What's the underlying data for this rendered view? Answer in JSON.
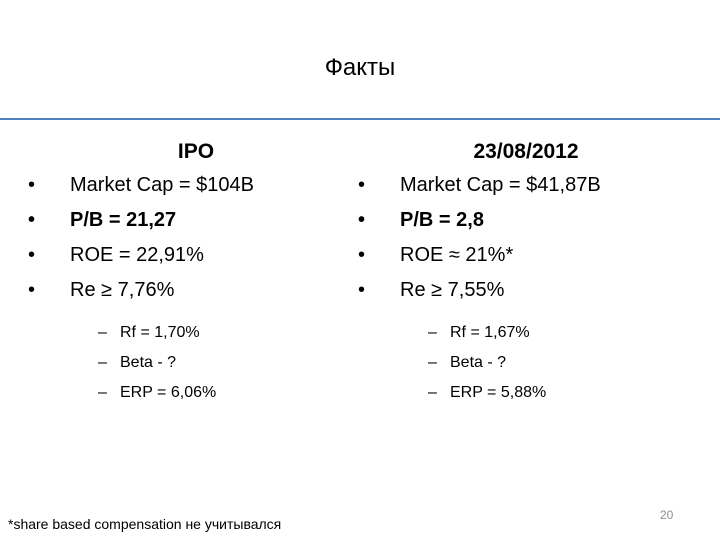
{
  "slide": {
    "title": "Факты",
    "footnote": "*share based compensation не учитывался",
    "page_number": "20",
    "accent_color": "#4f81bd"
  },
  "left": {
    "heading": "IPO",
    "bullets": [
      {
        "text": "Market Cap = $104B",
        "bold": false
      },
      {
        "text": "P/B = 21,27",
        "bold": true
      },
      {
        "text": "ROE = 22,91%",
        "bold": false
      },
      {
        "text": "Re ≥ 7,76%",
        "bold": false
      }
    ],
    "sub": [
      "Rf = 1,70%",
      "Beta - ?",
      "ERP = 6,06%"
    ]
  },
  "right": {
    "heading": "23/08/2012",
    "bullets": [
      {
        "text": "Market Cap = $41,87B",
        "bold": false
      },
      {
        "text": "P/B = 2,8",
        "bold": true
      },
      {
        "text": "ROE ≈ 21%*",
        "bold": false
      },
      {
        "text": "Re ≥ 7,55%",
        "bold": false
      }
    ],
    "sub": [
      "Rf = 1,67%",
      "Beta - ?",
      "ERP = 5,88%"
    ]
  },
  "glyphs": {
    "bullet": "•",
    "dash": "–"
  }
}
